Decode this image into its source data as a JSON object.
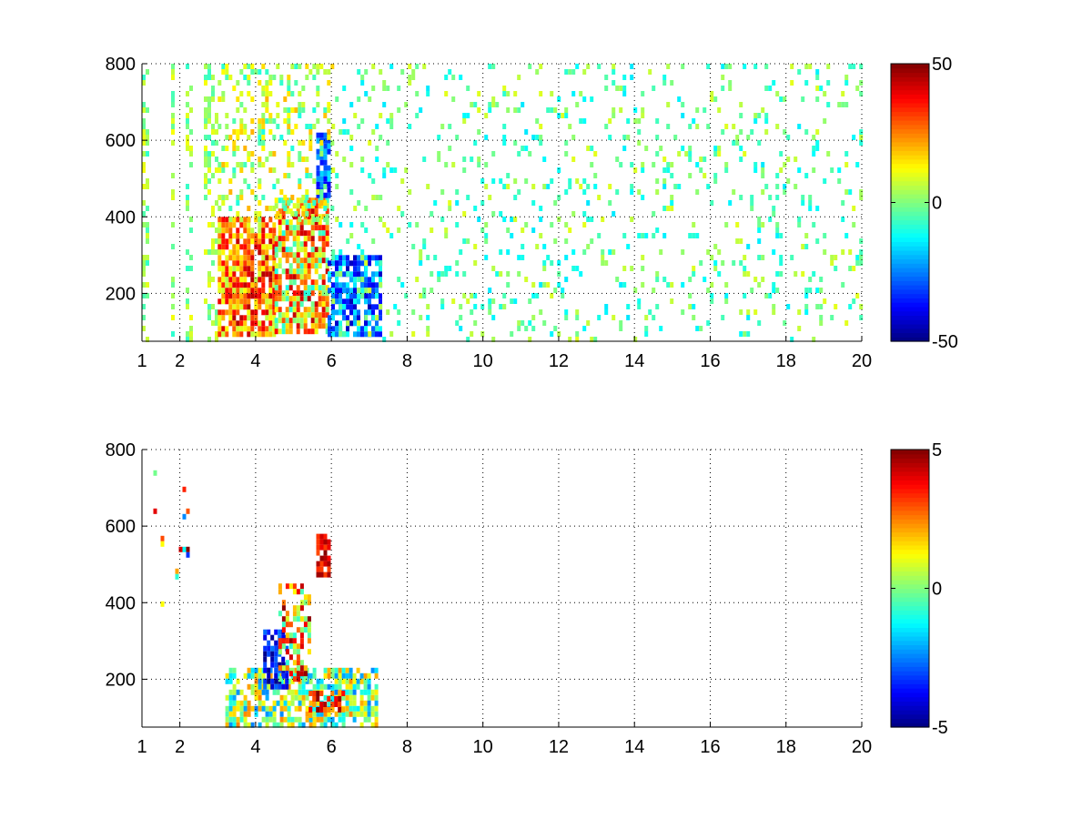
{
  "chart_data": [
    {
      "type": "heatmap",
      "title": "",
      "xlabel": "",
      "ylabel": "",
      "x_range": [
        1,
        20
      ],
      "y_range": [
        75,
        800
      ],
      "x_ticks": [
        1,
        2,
        4,
        6,
        8,
        10,
        12,
        14,
        16,
        18,
        20
      ],
      "x_tick_labels": [
        "1",
        "2",
        "4",
        "6",
        "8",
        "10",
        "12",
        "14",
        "16",
        "18",
        "20"
      ],
      "y_ticks": [
        200,
        400,
        600,
        800
      ],
      "y_tick_labels": [
        "200",
        "400",
        "600",
        "800"
      ],
      "grid": true,
      "colormap": "jet",
      "colorbar": {
        "min": -50,
        "max": 50,
        "ticks": [
          -50,
          0,
          50
        ],
        "tick_labels": [
          "-50",
          "0",
          "50"
        ]
      },
      "regions": [
        {
          "x": [
            1.0,
            3.0
          ],
          "y": [
            75,
            800
          ],
          "value_range": [
            -8,
            12
          ],
          "density": 0.35,
          "streaks": true
        },
        {
          "x": [
            3.0,
            4.5
          ],
          "y": [
            100,
            400
          ],
          "value_range": [
            5,
            45
          ],
          "density": 0.85
        },
        {
          "x": [
            4.5,
            5.9
          ],
          "y": [
            100,
            450
          ],
          "value_range": [
            -10,
            45
          ],
          "density": 0.8
        },
        {
          "x": [
            5.6,
            5.9
          ],
          "y": [
            450,
            620
          ],
          "value_range": [
            -40,
            -15
          ],
          "density": 0.8
        },
        {
          "x": [
            5.9,
            7.3
          ],
          "y": [
            100,
            300
          ],
          "value_range": [
            -45,
            -10
          ],
          "density": 0.75
        },
        {
          "x": [
            3.0,
            6.0
          ],
          "y": [
            400,
            800
          ],
          "value_range": [
            -10,
            20
          ],
          "density": 0.3
        },
        {
          "x": [
            6.0,
            20.0
          ],
          "y": [
            75,
            800
          ],
          "value_range": [
            -15,
            10
          ],
          "density": 0.12
        }
      ]
    },
    {
      "type": "heatmap",
      "title": "",
      "xlabel": "",
      "ylabel": "",
      "x_range": [
        1,
        20
      ],
      "y_range": [
        75,
        800
      ],
      "x_ticks": [
        1,
        2,
        4,
        6,
        8,
        10,
        12,
        14,
        16,
        18,
        20
      ],
      "x_tick_labels": [
        "1",
        "2",
        "4",
        "6",
        "8",
        "10",
        "12",
        "14",
        "16",
        "18",
        "20"
      ],
      "y_ticks": [
        200,
        400,
        600,
        800
      ],
      "y_tick_labels": [
        "200",
        "400",
        "600",
        "800"
      ],
      "grid": true,
      "colormap": "jet",
      "colorbar": {
        "min": -5,
        "max": 5,
        "ticks": [
          -5,
          0,
          5
        ],
        "tick_labels": [
          "-5",
          "0",
          "5"
        ]
      },
      "regions": [
        {
          "x": [
            3.2,
            7.2
          ],
          "y": [
            80,
            230
          ],
          "value_range": [
            -2.5,
            2.5
          ],
          "density": 0.7
        },
        {
          "x": [
            4.2,
            4.8
          ],
          "y": [
            180,
            330
          ],
          "value_range": [
            -5,
            -2.5
          ],
          "density": 0.7
        },
        {
          "x": [
            4.6,
            5.4
          ],
          "y": [
            200,
            450
          ],
          "value_range": [
            -1,
            5
          ],
          "density": 0.45
        },
        {
          "x": [
            5.6,
            5.9
          ],
          "y": [
            480,
            580
          ],
          "value_range": [
            3,
            5
          ],
          "density": 0.8
        },
        {
          "x": [
            5.4,
            6.3
          ],
          "y": [
            110,
            170
          ],
          "value_range": [
            2,
            5
          ],
          "density": 0.5
        },
        {
          "x": [
            1.3,
            2.2
          ],
          "y": [
            400,
            760
          ],
          "value_range": [
            -5,
            5
          ],
          "density": 0.06
        }
      ]
    }
  ]
}
